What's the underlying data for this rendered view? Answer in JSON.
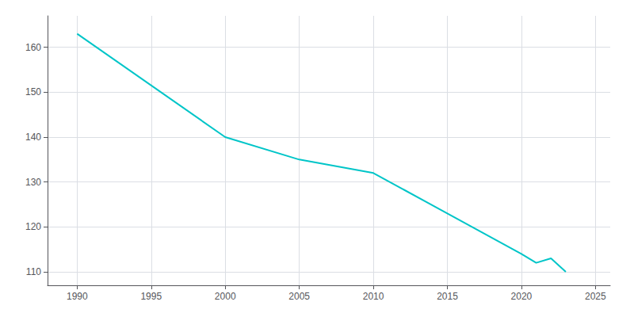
{
  "chart_data": {
    "type": "line",
    "x": [
      1990,
      2000,
      2005,
      2010,
      2020,
      2021,
      2022,
      2023
    ],
    "values": [
      163,
      140,
      135,
      132,
      114,
      112,
      113,
      110
    ],
    "color": "#00C5C8",
    "xlim": [
      1988,
      2026
    ],
    "ylim": [
      107,
      167
    ],
    "xticks": [
      1990,
      1995,
      2000,
      2005,
      2010,
      2015,
      2020,
      2025
    ],
    "yticks": [
      110,
      120,
      130,
      140,
      150,
      160
    ],
    "grid": true
  }
}
